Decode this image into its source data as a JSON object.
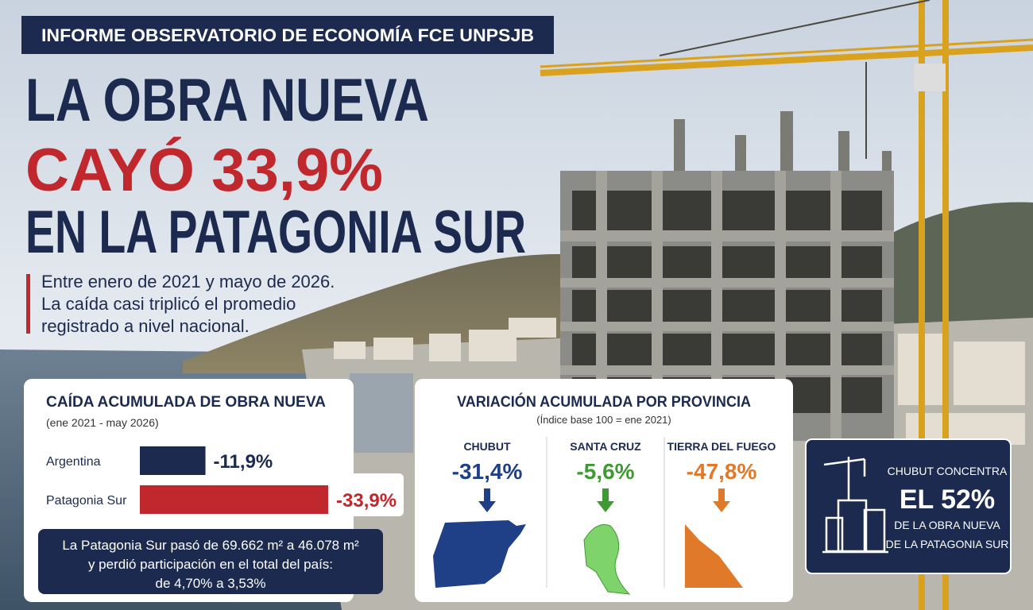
{
  "header": {
    "kicker": "INFORME OBSERVATORIO DE ECONOMÍA FCE UNPSJB",
    "title_lines": [
      "LA OBRA NUEVA",
      "CAYÓ 33,9%",
      "EN LA PATAGONIA SUR"
    ],
    "intro_lines": [
      "Entre enero de 2021 y mayo de 2026.",
      "La caída casi triplicó el promedio",
      "registrado a nivel nacional."
    ]
  },
  "chart_data": {
    "type": "bar",
    "orientation": "horizontal",
    "title": "CAÍDA ACUMULADA DE OBRA NUEVA",
    "subtitle": "(ene 2021 - may 2026)",
    "categories": [
      "Argentina",
      "Patagonia Sur"
    ],
    "values": [
      -11.9,
      -33.9
    ],
    "value_labels": [
      "-11,9%",
      "-33,9%"
    ],
    "colors": [
      "#1b2a4e",
      "#c0282d"
    ]
  },
  "note": {
    "lines": [
      "La Patagonia Sur pasó de 69.662 m² a 46.078 m²",
      "y perdió participación en el total del país:",
      "de 4,70% a 3,53%"
    ]
  },
  "provinces": {
    "title": "VARIACIÓN ACUMULADA POR PROVINCIA",
    "subtitle": "(Índice base 100 = ene 2021)",
    "items": [
      {
        "name": "CHUBUT",
        "value": "-31,4%",
        "color": "#1f3f86"
      },
      {
        "name": "SANTA CRUZ",
        "value": "-5,6%",
        "color": "#3f9a34"
      },
      {
        "name": "TIERRA DEL FUEGO",
        "value": "-47,8%",
        "color": "#e07a2a"
      }
    ]
  },
  "callout": {
    "lines": [
      "CHUBUT CONCENTRA",
      "EL 52%",
      "DE LA OBRA NUEVA",
      "DE LA PATAGONIA SUR"
    ]
  }
}
